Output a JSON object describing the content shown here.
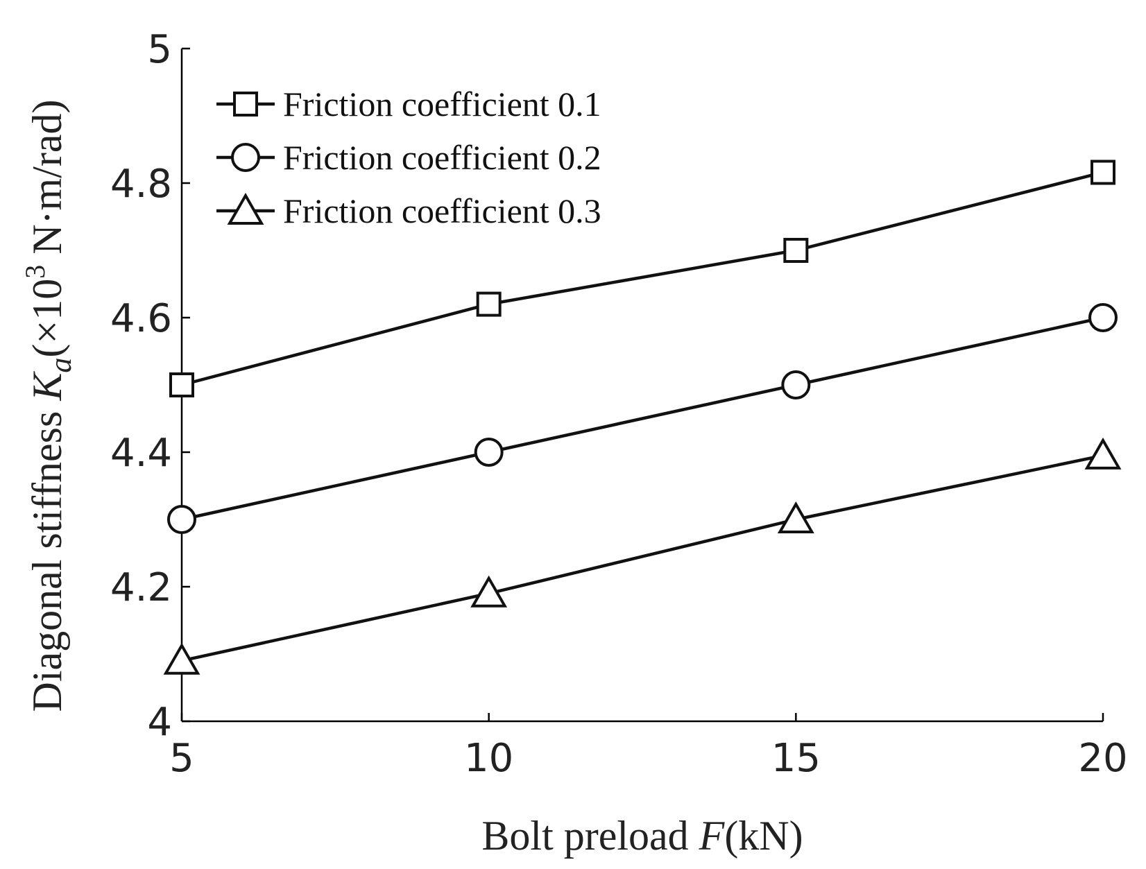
{
  "chart_data": {
    "type": "line",
    "title": "",
    "xlabel": {
      "prefix": "Bolt preload ",
      "symbol": "F",
      "suffix": "(kN)"
    },
    "ylabel": {
      "prefix": "Diagonal stiffness ",
      "symbol": "K",
      "subscript": "a",
      "unit_open": "(×10",
      "exponent": "3",
      "unit_close": " N·m/rad)"
    },
    "x": [
      5,
      10,
      15,
      20
    ],
    "xlim": [
      5,
      20
    ],
    "ylim": [
      4,
      5
    ],
    "xticks": [
      "5",
      "10",
      "15",
      "20"
    ],
    "yticks": [
      "4",
      "4.2",
      "4.4",
      "4.6",
      "4.8",
      "5"
    ],
    "grid": false,
    "legend_position": "top-left",
    "series": [
      {
        "name": "Friction coefficient  0.1",
        "marker": "square",
        "values": [
          4.5,
          4.62,
          4.7,
          4.816
        ]
      },
      {
        "name": "Friction coefficient  0.2",
        "marker": "circle",
        "values": [
          4.3,
          4.4,
          4.5,
          4.6
        ]
      },
      {
        "name": "Friction coefficient  0.3",
        "marker": "triangle",
        "values": [
          4.09,
          4.19,
          4.3,
          4.395
        ]
      }
    ]
  }
}
